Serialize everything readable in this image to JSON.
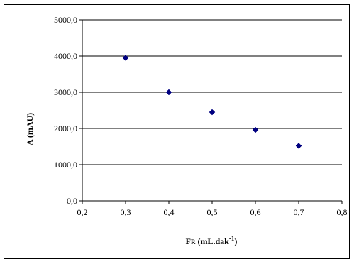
{
  "chart_data": {
    "type": "scatter",
    "title": "",
    "xlabel": "FR (mL.dak-1)",
    "xlabel_parts": {
      "main": "F",
      "small": "R",
      "unit_open": " (mL.dak",
      "superscript": "-1",
      "unit_close": ")"
    },
    "ylabel": "A (mAU)",
    "xlim": [
      0.2,
      0.8
    ],
    "ylim": [
      0,
      5000
    ],
    "x_ticks": [
      0.2,
      0.3,
      0.4,
      0.5,
      0.6,
      0.7,
      0.8
    ],
    "x_tick_labels": [
      "0,2",
      "0,3",
      "0,4",
      "0,5",
      "0,6",
      "0,7",
      "0,8"
    ],
    "y_ticks": [
      0,
      1000,
      2000,
      3000,
      4000,
      5000
    ],
    "y_tick_labels": [
      "0,0",
      "1000,0",
      "2000,0",
      "3000,0",
      "4000,0",
      "5000,0"
    ],
    "grid": "horizontal",
    "legend": "none",
    "marker": "diamond",
    "marker_color": "#000080",
    "series": [
      {
        "x": [
          0.3,
          0.4,
          0.5,
          0.6,
          0.7
        ],
        "y": [
          3950,
          3000,
          2450,
          1960,
          1520
        ]
      }
    ]
  }
}
